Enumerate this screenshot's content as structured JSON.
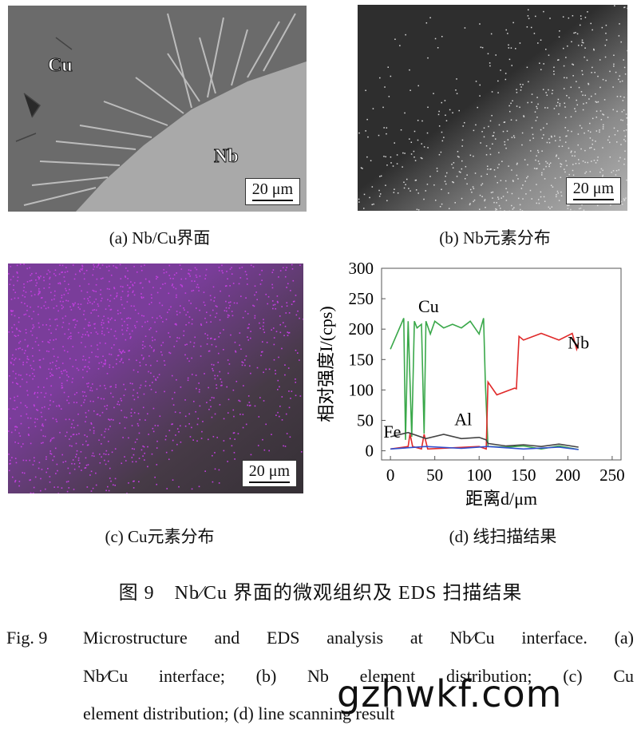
{
  "panel_a": {
    "label_cu": "Cu",
    "label_nb": "Nb",
    "scale": "20 μm"
  },
  "panel_b": {
    "scale": "20 μm"
  },
  "panel_c": {
    "scale": "20 μm"
  },
  "captions": {
    "a": "(a) Nb/Cu界面",
    "b": "(b) Nb元素分布",
    "c": "(c) Cu元素分布",
    "d": "(d) 线扫描结果"
  },
  "figure_title": "图 9　Nb∕Cu 界面的微观组织及 EDS 扫描结果",
  "english_caption": {
    "prefix": "Fig. 9",
    "line1": "Microstructure and EDS analysis at Nb∕Cu interface. (a)",
    "line2": "Nb∕Cu interface; (b) Nb element distribution; (c) Cu",
    "line3": "element distribution; (d) line scanning result"
  },
  "watermark": "gzhwkf.com",
  "chart_data": {
    "type": "line",
    "xlabel": "距离d/μm",
    "ylabel": "相对强度I/(cps)",
    "xlim": [
      -10,
      260
    ],
    "ylim": [
      -15,
      300
    ],
    "xticks": [
      0,
      50,
      100,
      150,
      200,
      250
    ],
    "yticks": [
      0,
      50,
      100,
      150,
      200,
      250,
      300
    ],
    "series": [
      {
        "name": "Cu",
        "color": "#3aa84a",
        "x": [
          0,
          15,
          17,
          20,
          24,
          27,
          30,
          35,
          38,
          40,
          45,
          50,
          60,
          70,
          80,
          90,
          100,
          105,
          107,
          110,
          130,
          150,
          170,
          190,
          212
        ],
        "y": [
          175,
          210,
          20,
          205,
          25,
          205,
          210,
          200,
          30,
          205,
          200,
          205,
          210,
          200,
          210,
          205,
          200,
          210,
          120,
          5,
          8,
          6,
          5,
          6,
          4
        ]
      },
      {
        "name": "Nb",
        "color": "#e02a2a",
        "x": [
          0,
          20,
          22,
          25,
          35,
          38,
          42,
          100,
          108,
          110,
          120,
          140,
          142,
          145,
          150,
          170,
          190,
          205,
          210,
          212
        ],
        "y": [
          5,
          5,
          30,
          5,
          5,
          25,
          5,
          5,
          5,
          105,
          100,
          95,
          110,
          180,
          190,
          185,
          190,
          185,
          175,
          170
        ]
      },
      {
        "name": "Al",
        "color": "#444444",
        "x": [
          0,
          20,
          40,
          60,
          80,
          100,
          108,
          110,
          130,
          150,
          170,
          190,
          212
        ],
        "y": [
          25,
          28,
          22,
          25,
          22,
          20,
          20,
          10,
          10,
          8,
          9,
          9,
          8
        ]
      },
      {
        "name": "Fe",
        "color": "#3050d0",
        "x": [
          0,
          40,
          80,
          110,
          150,
          190,
          212
        ],
        "y": [
          5,
          5,
          6,
          5,
          5,
          4,
          4
        ]
      }
    ],
    "annotations": [
      {
        "text": "Cu",
        "x": 43,
        "y": 228
      },
      {
        "text": "Nb",
        "x": 212,
        "y": 168
      },
      {
        "text": "Al",
        "x": 82,
        "y": 42
      },
      {
        "text": "Fe",
        "x": 2,
        "y": 22
      }
    ]
  }
}
